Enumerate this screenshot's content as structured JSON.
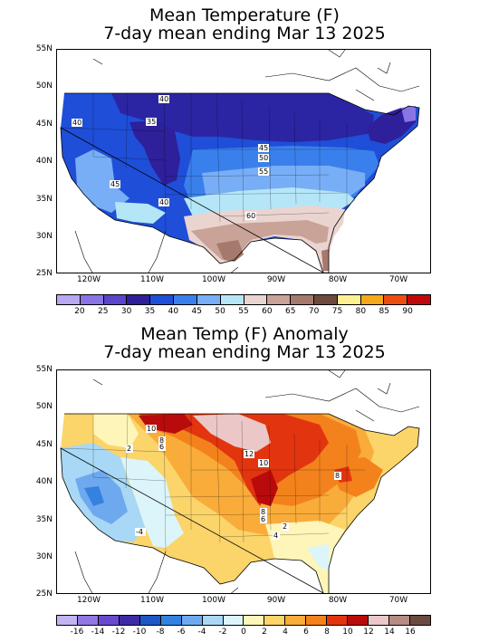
{
  "map1": {
    "title_line1": "Mean Temperature (F)",
    "title_line2": "7-day mean ending Mar 13 2025",
    "lat_labels": [
      "55N",
      "50N",
      "45N",
      "40N",
      "35N",
      "30N",
      "25N"
    ],
    "lon_labels": [
      "120W",
      "110W",
      "100W",
      "90W",
      "80W",
      "70W"
    ],
    "contour_labels": [
      "40",
      "35",
      "40",
      "45",
      "50",
      "55",
      "45",
      "40",
      "60"
    ],
    "colorbar": {
      "colors": [
        "#b9a7f0",
        "#8b74e6",
        "#5a45cc",
        "#2e1f9a",
        "#1f4ed8",
        "#3a80ec",
        "#78aef6",
        "#b5e6f8",
        "#ead4cf",
        "#c9a298",
        "#a57a6c",
        "#6e4a3e",
        "#fdf091",
        "#f6a81b",
        "#ee4d10",
        "#c00a0a"
      ],
      "labels": [
        "20",
        "25",
        "30",
        "35",
        "40",
        "45",
        "50",
        "55",
        "60",
        "65",
        "70",
        "75",
        "80",
        "85",
        "90"
      ]
    }
  },
  "map2": {
    "title_line1": "Mean Temp (F) Anomaly",
    "title_line2": "7-day mean ending Mar 13 2025",
    "lat_labels": [
      "55N",
      "50N",
      "45N",
      "40N",
      "35N",
      "30N",
      "25N"
    ],
    "lon_labels": [
      "120W",
      "110W",
      "100W",
      "90W",
      "80W",
      "70W"
    ],
    "contour_labels": [
      "10",
      "8",
      "6",
      "2",
      "12",
      "10",
      "8",
      "8",
      "6",
      "2",
      "4",
      "-4"
    ],
    "colorbar": {
      "colors": [
        "#c3b3f0",
        "#9278e4",
        "#6a49cf",
        "#3f2aa6",
        "#1d57c4",
        "#3581df",
        "#6ea9ef",
        "#a8d8f5",
        "#dcf5fa",
        "#fdf6b8",
        "#fbd46a",
        "#f9ac3a",
        "#f3821d",
        "#e2350f",
        "#b90b0b",
        "#ecc7c7",
        "#b58c83",
        "#6b4a41"
      ],
      "labels": [
        "-16",
        "-14",
        "-12",
        "-10",
        "-8",
        "-6",
        "-4",
        "-2",
        "0",
        "2",
        "4",
        "6",
        "8",
        "10",
        "12",
        "14",
        "16"
      ]
    }
  }
}
